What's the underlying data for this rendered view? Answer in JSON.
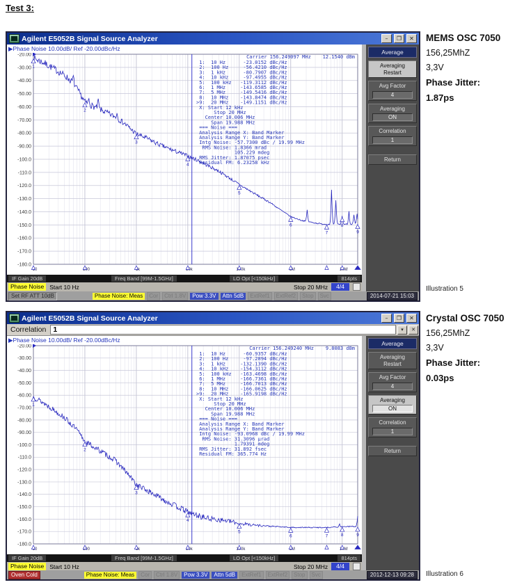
{
  "page": {
    "heading": "Test 3:"
  },
  "win_controls": {
    "min": "–",
    "restore": "❐",
    "close": "✕"
  },
  "windows": [
    {
      "title": "Agilent E5052B Signal Source Analyzer",
      "graph_header": "▶Phase Noise 10.00dB/ Ref -20.00dBc/Hz",
      "bars": {
        "if_gain": "IF Gain 20dB",
        "freq_band": "Freq Band [99M-1.5GHz]",
        "lo_opt": "LO Opt [<150kHz]",
        "points": "814pts",
        "mode": "Phase Noise",
        "start": "Start 10 Hz",
        "stop": "Stop 20 MHz",
        "avg": "4/4"
      },
      "softkeys": {
        "header": "Average",
        "buttons": [
          {
            "label": "Averaging\nRestart",
            "active": true
          },
          {
            "label": "Avg Factor",
            "value": "4"
          },
          {
            "label": "Averaging",
            "value": "ON"
          },
          {
            "label": "Correlation",
            "value": "1"
          },
          {
            "label": "Return",
            "gap_before": true
          }
        ]
      },
      "status": [
        {
          "text": "Set RF ATT 10dB",
          "style": "sunken"
        },
        {
          "text": "Phase Noise: Meas",
          "style": "yellow"
        },
        {
          "text": "Cor",
          "style": "dim"
        },
        {
          "text": "Ctrl 1.8V",
          "style": "dim"
        },
        {
          "text": "Pow 3.3V",
          "style": "blue"
        },
        {
          "text": "Attn 5dB",
          "style": "blue"
        },
        {
          "text": "ExtRef1",
          "style": "dim"
        },
        {
          "text": "ExtRef2",
          "style": "dim"
        },
        {
          "text": "Stop",
          "style": "dim"
        },
        {
          "text": "Svc",
          "style": "dim"
        },
        {
          "text": "2014-07-21 15:03",
          "style": "date"
        }
      ]
    },
    {
      "title": "Agilent E5052B Signal Source Analyzer",
      "graph_header": "▶Phase Noise 10.00dB/ Ref -20.00dBc/Hz",
      "correlation": {
        "label": "Correlation",
        "value": "1",
        "spin_icon": "▾",
        "close_icon": "✕"
      },
      "bars": {
        "if_gain": "IF Gain 20dB",
        "freq_band": "Freq Band [99M-1.5GHz]",
        "lo_opt": "LO Opt [<150kHz]",
        "points": "814pts",
        "mode": "Phase Noise",
        "start": "Start 10 Hz",
        "stop": "Stop 20 MHz",
        "avg": "4/4"
      },
      "softkeys": {
        "header": "Average",
        "buttons": [
          {
            "label": "Averaging\nRestart"
          },
          {
            "label": "Avg Factor",
            "value": "4"
          },
          {
            "label": "Averaging",
            "value": "ON",
            "active": true
          },
          {
            "label": "Correlation",
            "value": "1"
          },
          {
            "label": "Return",
            "gap_before": true
          }
        ]
      },
      "status": [
        {
          "text": "Oven Cold",
          "style": "red"
        },
        {
          "text": "Phase Noise: Meas",
          "style": "yellow"
        },
        {
          "text": "Cor",
          "style": "dim"
        },
        {
          "text": "Ctrl 1.8V",
          "style": "dim"
        },
        {
          "text": "Pow 3.3V",
          "style": "blue"
        },
        {
          "text": "Attn 5dB",
          "style": "blue"
        },
        {
          "text": "ExtRef1",
          "style": "dim"
        },
        {
          "text": "ExtRef2",
          "style": "dim"
        },
        {
          "text": "Stop",
          "style": "dim"
        },
        {
          "text": "Svc",
          "style": "dim"
        },
        {
          "text": "2012-12-13 09:28",
          "style": "date"
        }
      ]
    }
  ],
  "annotations": [
    {
      "title": "MEMS OSC 7050",
      "lines": [
        "156,25MhZ",
        "3,3V"
      ],
      "jitter_label": "Phase Jitter:",
      "jitter_value": "1.87ps",
      "caption": "Illustration 5"
    },
    {
      "title": "Crystal OSC 7050",
      "lines": [
        "156,25MhZ",
        "3,3V"
      ],
      "jitter_label": "Phase Jitter:",
      "jitter_value": "0.03ps",
      "caption": "Illustration 6"
    }
  ],
  "chart_data": [
    {
      "type": "line",
      "title": "Phase Noise 10.00dB/ Ref -20.00dBc/Hz",
      "x_scale": "log",
      "x_range_hz": [
        10,
        20000000
      ],
      "x_ticks": [
        "10",
        "100",
        "1k",
        "10k",
        "100k",
        "1M",
        "10M"
      ],
      "ylim": [
        -180,
        -20
      ],
      "y_unit": "dBc/Hz",
      "yticks": [
        "-20.00",
        "-30.00",
        "-40.00",
        "-50.00",
        "-60.00",
        "-70.00",
        "-80.00",
        "-90.00",
        "-100.0",
        "-110.0",
        "-120.0",
        "-130.0",
        "-140.0",
        "-150.0",
        "-160.0",
        "-170.0",
        "-180.0"
      ],
      "carrier_line": "Carrier 156.249097 MHz    12.1540 dBm",
      "band_marker_hz": 12000,
      "markers": [
        {
          "n": " 1",
          "hz": 10,
          "dbc": -23.0152
        },
        {
          "n": " 2",
          "hz": 100,
          "dbc": -56.421
        },
        {
          "n": " 3",
          "hz": 1000,
          "dbc": -80.7907
        },
        {
          "n": " 4",
          "hz": 10000,
          "dbc": -97.4955
        },
        {
          "n": " 5",
          "hz": 100000,
          "dbc": -119.3112
        },
        {
          "n": " 6",
          "hz": 1000000,
          "dbc": -143.6585
        },
        {
          "n": " 7",
          "hz": 5000000,
          "dbc": -149.5416
        },
        {
          "n": " 8",
          "hz": 10000000,
          "dbc": -143.8474
        },
        {
          "n": ">9",
          "hz": 20000000,
          "dbc": -149.1151,
          "active": true
        }
      ],
      "table_lines": [
        " 1:  10 Hz      -23.0152 dBc/Hz",
        " 2:  100 Hz     -56.4210 dBc/Hz",
        " 3:  1 kHz      -80.7907 dBc/Hz",
        " 4:  10 kHz     -97.4955 dBc/Hz",
        " 5:  100 kHz   -119.3112 dBc/Hz",
        " 6:  1 MHz     -143.6585 dBc/Hz",
        " 7:  5 MHz     -149.5416 dBc/Hz",
        " 8:  10 MHz    -143.8474 dBc/Hz",
        ">9:  20 MHz    -149.1151 dBc/Hz",
        " X: Start 12 kHz",
        "      Stop 20 MHz",
        "   Center 10.006 MHz",
        "     Span 19.988 MHz",
        " === Noise ===",
        " Analysis Range X: Band Marker",
        " Analysis Range Y: Band Marker",
        " Intg Noise: -57.7300 dBc / 19.99 MHz",
        "  RMS Noise: 1.8366 mrad",
        "             105.229 mdeg",
        " RMS Jitter: 1.87075 psec",
        " Residual FM: 6.23258 kHz"
      ],
      "render": {
        "seed": 7,
        "anchors": [
          [
            10,
            -23
          ],
          [
            15,
            -26
          ],
          [
            25,
            -31
          ],
          [
            40,
            -36
          ],
          [
            60,
            -42
          ],
          [
            80,
            -50
          ],
          [
            100,
            -56.4
          ],
          [
            150,
            -60
          ],
          [
            250,
            -64
          ],
          [
            400,
            -68
          ],
          [
            600,
            -73
          ],
          [
            1000,
            -80.8
          ],
          [
            1600,
            -84
          ],
          [
            2500,
            -88
          ],
          [
            4000,
            -91.5
          ],
          [
            6300,
            -94.5
          ],
          [
            10000,
            -97.5
          ],
          [
            16000,
            -101
          ],
          [
            25000,
            -105
          ],
          [
            40000,
            -109
          ],
          [
            63000,
            -114
          ],
          [
            100000,
            -119.3
          ],
          [
            160000,
            -124
          ],
          [
            250000,
            -128.5
          ],
          [
            400000,
            -133
          ],
          [
            630000,
            -138.5
          ],
          [
            1000000,
            -143.7
          ],
          [
            1600000,
            -146.5
          ],
          [
            2500000,
            -148
          ],
          [
            4000000,
            -149.3
          ],
          [
            5000000,
            -149.5
          ],
          [
            8000000,
            -149.6
          ],
          [
            10000000,
            -149.4
          ],
          [
            20000000,
            -149.6
          ]
        ],
        "noise": [
          [
            10,
            2.8
          ],
          [
            300,
            2.2
          ],
          [
            100000,
            1.0
          ],
          [
            1000000,
            0.45
          ],
          [
            20000000,
            0.55
          ]
        ],
        "spurs": [
          [
            60,
            5
          ],
          [
            120,
            4
          ],
          [
            180,
            7
          ],
          [
            420,
            4
          ],
          [
            2100000,
            9
          ],
          [
            6200000,
            26
          ],
          [
            7600000,
            18
          ],
          [
            10000000,
            6
          ],
          [
            13500000,
            10
          ],
          [
            17000000,
            7
          ],
          [
            19500000,
            8
          ]
        ]
      }
    },
    {
      "type": "line",
      "title": "Phase Noise 10.00dB/ Ref -20.00dBc/Hz",
      "x_scale": "log",
      "x_range_hz": [
        10,
        20000000
      ],
      "x_ticks": [
        "10",
        "100",
        "1k",
        "10k",
        "100k",
        "1M",
        "10M"
      ],
      "ylim": [
        -180,
        -20
      ],
      "y_unit": "dBc/Hz",
      "yticks": [
        "-20.00",
        "-30.00",
        "-40.00",
        "-50.00",
        "-60.00",
        "-70.00",
        "-80.00",
        "-90.00",
        "-100.0",
        "-110.0",
        "-120.0",
        "-130.0",
        "-140.0",
        "-150.0",
        "-160.0",
        "-170.0",
        "-180.0"
      ],
      "carrier_line": "Carrier 156.249240 MHz    9.8083 dBm",
      "band_marker_hz": 12000,
      "markers": [
        {
          "n": " 1",
          "hz": 10,
          "dbc": -60.9357
        },
        {
          "n": " 2",
          "hz": 100,
          "dbc": -97.2894
        },
        {
          "n": " 3",
          "hz": 1000,
          "dbc": -132.139
        },
        {
          "n": " 4",
          "hz": 10000,
          "dbc": -154.3112
        },
        {
          "n": " 5",
          "hz": 100000,
          "dbc": -163.4698
        },
        {
          "n": " 6",
          "hz": 1000000,
          "dbc": -166.7361
        },
        {
          "n": " 7",
          "hz": 5000000,
          "dbc": -166.7013
        },
        {
          "n": " 8",
          "hz": 10000000,
          "dbc": -166.0625
        },
        {
          "n": ">9",
          "hz": 20000000,
          "dbc": -165.9198,
          "active": true
        }
      ],
      "table_lines": [
        " 1:  10 Hz      -60.9357 dBc/Hz",
        " 2:  100 Hz     -97.2894 dBc/Hz",
        " 3:  1 kHz     -132.1390 dBc/Hz",
        " 4:  10 kHz    -154.3112 dBc/Hz",
        " 5:  100 kHz   -163.4698 dBc/Hz",
        " 6:  1 MHz     -166.7361 dBc/Hz",
        " 7:  5 MHz     -166.7013 dBc/Hz",
        " 8:  10 MHz    -166.0625 dBc/Hz",
        ">9:  20 MHz    -165.9198 dBc/Hz",
        " X: Start 12 kHz",
        "      Stop 20 MHz",
        "   Center 10.006 MHz",
        "     Span 19.988 MHz",
        " === Noise ===",
        " Analysis Range X: Band Marker",
        " Analysis Range Y: Band Marker",
        " Intg Noise: -93.0968 dBc / 19.99 MHz",
        "  RMS Noise: 31.3096 µrad",
        "             1.79391 mdeg",
        " RMS Jitter: 31.892 fsec",
        " Residual FM: 365.774 Hz"
      ],
      "render": {
        "seed": 13,
        "anchors": [
          [
            10,
            -61
          ],
          [
            20,
            -69
          ],
          [
            40,
            -78
          ],
          [
            70,
            -88
          ],
          [
            100,
            -97.3
          ],
          [
            200,
            -105
          ],
          [
            400,
            -113
          ],
          [
            700,
            -124
          ],
          [
            1000,
            -132.1
          ],
          [
            2000,
            -139
          ],
          [
            4000,
            -146
          ],
          [
            7000,
            -151
          ],
          [
            10000,
            -154.3
          ],
          [
            15000,
            -157
          ],
          [
            25000,
            -159.5
          ],
          [
            40000,
            -160.5
          ],
          [
            70000,
            -162
          ],
          [
            100000,
            -163.5
          ],
          [
            200000,
            -164.8
          ],
          [
            400000,
            -165.8
          ],
          [
            1000000,
            -166.7
          ],
          [
            3000000,
            -166.8
          ],
          [
            5000000,
            -166.7
          ],
          [
            10000000,
            -166.1
          ],
          [
            20000000,
            -165.9
          ]
        ],
        "noise": [
          [
            10,
            2.2
          ],
          [
            1000,
            2.2
          ],
          [
            20000,
            2.4
          ],
          [
            200000,
            1.1
          ],
          [
            500000,
            0.45
          ],
          [
            20000000,
            0.4
          ]
        ],
        "spurs": [
          [
            9000000,
            2
          ],
          [
            19800000,
            8
          ]
        ]
      }
    }
  ]
}
